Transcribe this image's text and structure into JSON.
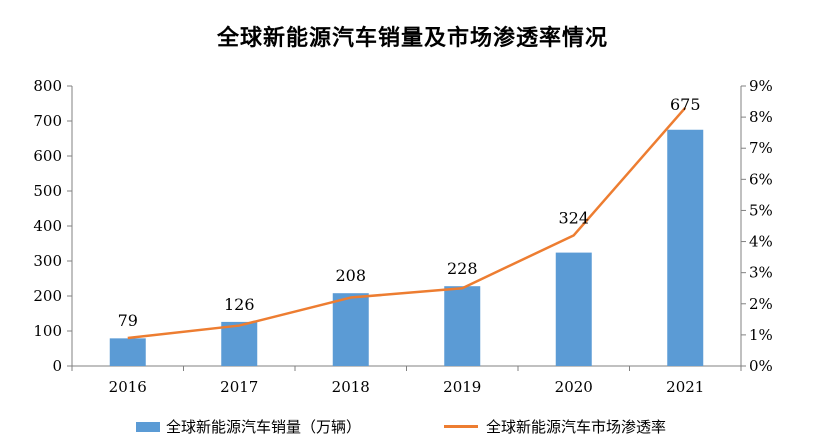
{
  "chart_data": {
    "type": "bar",
    "title": "全球新能源汽车销量及市场渗透率情况",
    "categories": [
      "2016",
      "2017",
      "2018",
      "2019",
      "2020",
      "2021"
    ],
    "series": [
      {
        "name": "全球新能源汽车销量（万辆）",
        "type": "bar",
        "axis": "left",
        "values": [
          79,
          126,
          208,
          228,
          324,
          675
        ],
        "data_labels": [
          "79",
          "126",
          "208",
          "228",
          "324",
          "675"
        ],
        "color": "#5B9BD5"
      },
      {
        "name": "全球新能源汽车市场渗透率",
        "type": "line",
        "axis": "right",
        "values": [
          0.9,
          1.3,
          2.2,
          2.5,
          4.2,
          8.3
        ],
        "color": "#ED7D31"
      }
    ],
    "y_left": {
      "min": 0,
      "max": 800,
      "ticks": [
        "0",
        "100",
        "200",
        "300",
        "400",
        "500",
        "600",
        "700",
        "800"
      ]
    },
    "y_right": {
      "min": 0,
      "max": 9,
      "ticks": [
        "0%",
        "1%",
        "2%",
        "3%",
        "4%",
        "5%",
        "6%",
        "7%",
        "8%",
        "9%"
      ]
    },
    "grid": false,
    "legend_position": "bottom"
  }
}
